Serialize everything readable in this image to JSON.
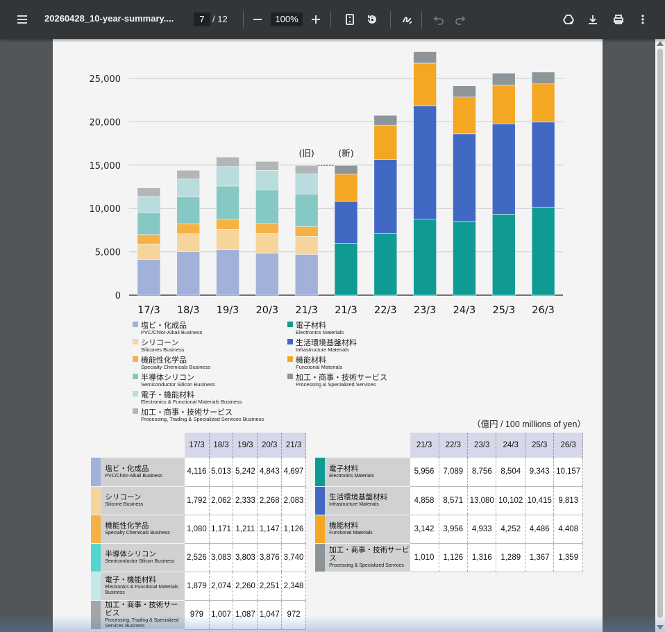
{
  "toolbar": {
    "title": "20260428_10-year-summary....",
    "page_current": "7",
    "page_total": "/ 12",
    "zoom": "100%",
    "icons": [
      "menu-icon",
      "zoom-out-icon",
      "zoom-in-icon",
      "fit-page-icon",
      "rotate-icon",
      "draw-icon",
      "undo-icon",
      "redo-icon",
      "drive-save-icon",
      "download-icon",
      "print-icon",
      "more-icon"
    ]
  },
  "chart_data": {
    "type": "bar",
    "stacked": true,
    "categories": [
      "17/3",
      "18/3",
      "19/3",
      "20/3",
      "21/3",
      "21/3",
      "22/3",
      "23/3",
      "24/3",
      "25/3",
      "26/3"
    ],
    "annotations": [
      "(旧)",
      "(新)"
    ],
    "ylim": [
      0,
      28000
    ],
    "yticks": [
      "25,000",
      "20,000",
      "15,000",
      "10,000",
      "5,000",
      "0"
    ],
    "old_series": [
      {
        "name": "塩ビ・化成品",
        "en": "PVC/Chlor-Alkali Business",
        "color": "#a2b1da",
        "values": [
          4116,
          5013,
          5242,
          4843,
          4697
        ]
      },
      {
        "name": "シリコーン",
        "en": "Silicones Business",
        "color": "#f6d59d",
        "values": [
          1792,
          2062,
          2333,
          2268,
          2083
        ]
      },
      {
        "name": "機能性化学品",
        "en": "Specialty Chemicals Business",
        "color": "#f4b244",
        "values": [
          1080,
          1171,
          1211,
          1147,
          1126
        ]
      },
      {
        "name": "半導体シリコン",
        "en": "Semiconductor Silicon Business",
        "color": "#86c8c4",
        "values": [
          2526,
          3083,
          3803,
          3876,
          3740
        ]
      },
      {
        "name": "電子・機能材料",
        "en": "Electronics & Functional Materials Business",
        "color": "#b9dcde",
        "values": [
          1879,
          2074,
          2260,
          2251,
          2348
        ]
      },
      {
        "name": "加工・商事・技術サービス",
        "en": "Processing, Trading & Specialized Services Business",
        "color": "#b3b6b7",
        "values": [
          979,
          1007,
          1087,
          1047,
          972
        ]
      }
    ],
    "new_series": [
      {
        "name": "電子材料",
        "en": "Electronics Materials",
        "color": "#0f9b93",
        "values": [
          5956,
          7089,
          8756,
          8504,
          9343,
          10157
        ]
      },
      {
        "name": "生活環境基盤材料",
        "en": "Infrastructure Materials",
        "color": "#4169c4",
        "values": [
          4858,
          8571,
          13080,
          10102,
          10415,
          9813
        ]
      },
      {
        "name": "機能材料",
        "en": "Functional Materials",
        "color": "#f4a722",
        "values": [
          3142,
          3956,
          4933,
          4252,
          4486,
          4408
        ]
      },
      {
        "name": "加工・商事・技術サービス",
        "en": "Processing & Specialized Services",
        "color": "#8e9599",
        "values": [
          1010,
          1126,
          1316,
          1289,
          1367,
          1359
        ]
      }
    ]
  },
  "legend": {
    "old": [
      {
        "jp": "塩ビ・化成品",
        "en": "PVC/Chlor-Alkali Business",
        "color": "#a2b1da"
      },
      {
        "jp": "シリコーン",
        "en": "Silicones Business",
        "color": "#f6d59d"
      },
      {
        "jp": "機能性化学品",
        "en": "Specialty Chemicals Business",
        "color": "#f4b244"
      },
      {
        "jp": "半導体シリコン",
        "en": "Semiconductor Silicon Business",
        "color": "#86c8c4"
      },
      {
        "jp": "電子・機能材料",
        "en": "Electronics & Functional Materials Business",
        "color": "#b9dcde"
      },
      {
        "jp": "加工・商事・技術サービス",
        "en": "Processing, Trading & Specialized Services Business",
        "color": "#b3b6b7"
      }
    ],
    "new": [
      {
        "jp": "電子材料",
        "en": "Electronics Materials",
        "color": "#0f9b93"
      },
      {
        "jp": "生活環境基盤材料",
        "en": "Infrastructure Materials",
        "color": "#4169c4"
      },
      {
        "jp": "機能材料",
        "en": "Functional Materials",
        "color": "#f4a722"
      },
      {
        "jp": "加工・商事・技術サービス",
        "en": "Processing & Specialized Services",
        "color": "#8e9599"
      }
    ]
  },
  "unit_label": "（億円 / 100 millions of yen）",
  "table_old": {
    "headers": [
      "17/3",
      "18/3",
      "19/3",
      "20/3",
      "21/3"
    ],
    "rows": [
      {
        "jp": "塩ビ・化成品",
        "en": "PVC/Chlor-Alkali Business",
        "color": "#a2b1da",
        "values": [
          "4,116",
          "5,013",
          "5,242",
          "4,843",
          "4,697"
        ]
      },
      {
        "jp": "シリコーン",
        "en": "Silicone Business",
        "color": "#f6d59d",
        "values": [
          "1,792",
          "2,062",
          "2,333",
          "2,268",
          "2,083"
        ]
      },
      {
        "jp": "機能性化学品",
        "en": "Specialty Chemicals Business",
        "color": "#f4b244",
        "values": [
          "1,080",
          "1,171",
          "1,211",
          "1,147",
          "1,126"
        ]
      },
      {
        "jp": "半導体シリコン",
        "en": "Semiconductor Silicon Business",
        "color": "#4fd6cf",
        "values": [
          "2,526",
          "3,083",
          "3,803",
          "3,876",
          "3,740"
        ]
      },
      {
        "jp": "電子・機能材料",
        "en": "Electronics & Functional Materials Business",
        "color": "#c3e8e8",
        "values": [
          "1,879",
          "2,074",
          "2,260",
          "2,251",
          "2,348"
        ]
      },
      {
        "jp": "加工・商事・技術サービス",
        "en": "Processing, Trading & Specialized Services Business",
        "color": "#a3a6a8",
        "values": [
          "979",
          "1,007",
          "1,087",
          "1,047",
          "972"
        ]
      }
    ]
  },
  "table_new": {
    "headers": [
      "21/3",
      "22/3",
      "23/3",
      "24/3",
      "25/3",
      "26/3"
    ],
    "rows": [
      {
        "jp": "電子材料",
        "en": "Electronics Materials",
        "color": "#0f9b93",
        "values": [
          "5,956",
          "7,089",
          "8,756",
          "8,504",
          "9,343",
          "10,157"
        ]
      },
      {
        "jp": "生活環境基盤材料",
        "en": "Infrastructure Materials",
        "color": "#4169c4",
        "values": [
          "4,858",
          "8,571",
          "13,080",
          "10,102",
          "10,415",
          "9,813"
        ]
      },
      {
        "jp": "機能材料",
        "en": "Functional Materials",
        "color": "#f4a722",
        "values": [
          "3,142",
          "3,956",
          "4,933",
          "4,252",
          "4,486",
          "4,408"
        ]
      },
      {
        "jp": "加工・商事・技術サービス",
        "en": "Processing & Specialized Services",
        "color": "#8e9599",
        "values": [
          "1,010",
          "1,126",
          "1,316",
          "1,289",
          "1,367",
          "1,359"
        ]
      }
    ]
  }
}
